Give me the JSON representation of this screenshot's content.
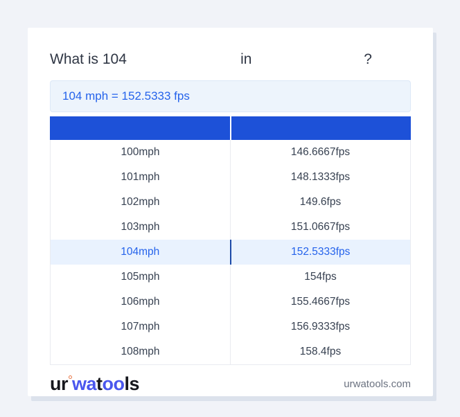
{
  "colors": {
    "page_bg": "#f1f3f8",
    "card_bg": "#ffffff",
    "accent_blue": "#1d51d8",
    "highlight_bg": "#e9f2fe",
    "highlight_divider": "#1d4aa8",
    "link_blue": "#2563eb",
    "result_bg": "#edf4fc",
    "result_border": "#dce8f7",
    "row_text": "#374151",
    "muted_text": "#6b7280",
    "logo_blue": "#4a57ee",
    "logo_dark": "#16171d",
    "logo_ring": "#e8794a",
    "heading_text": "#2f3644"
  },
  "question": {
    "prefix": "What is 104",
    "connector": "in",
    "suffix": "?"
  },
  "result": {
    "text": "104 mph = 152.5333 fps"
  },
  "table": {
    "header": {
      "from_label": "",
      "to_label": ""
    },
    "rows": [
      {
        "from": "100mph",
        "to": "146.6667fps",
        "highlighted": false
      },
      {
        "from": "101mph",
        "to": "148.1333fps",
        "highlighted": false
      },
      {
        "from": "102mph",
        "to": "149.6fps",
        "highlighted": false
      },
      {
        "from": "103mph",
        "to": "151.0667fps",
        "highlighted": false
      },
      {
        "from": "104mph",
        "to": "152.5333fps",
        "highlighted": true
      },
      {
        "from": "105mph",
        "to": "154fps",
        "highlighted": false
      },
      {
        "from": "106mph",
        "to": "155.4667fps",
        "highlighted": false
      },
      {
        "from": "107mph",
        "to": "156.9333fps",
        "highlighted": false
      },
      {
        "from": "108mph",
        "to": "158.4fps",
        "highlighted": false
      }
    ]
  },
  "footer": {
    "logo": {
      "seg1": "ur",
      "seg2": "wa",
      "seg3": "t",
      "seg4": "oo",
      "seg5": "ls"
    },
    "website": "urwatools.com"
  }
}
